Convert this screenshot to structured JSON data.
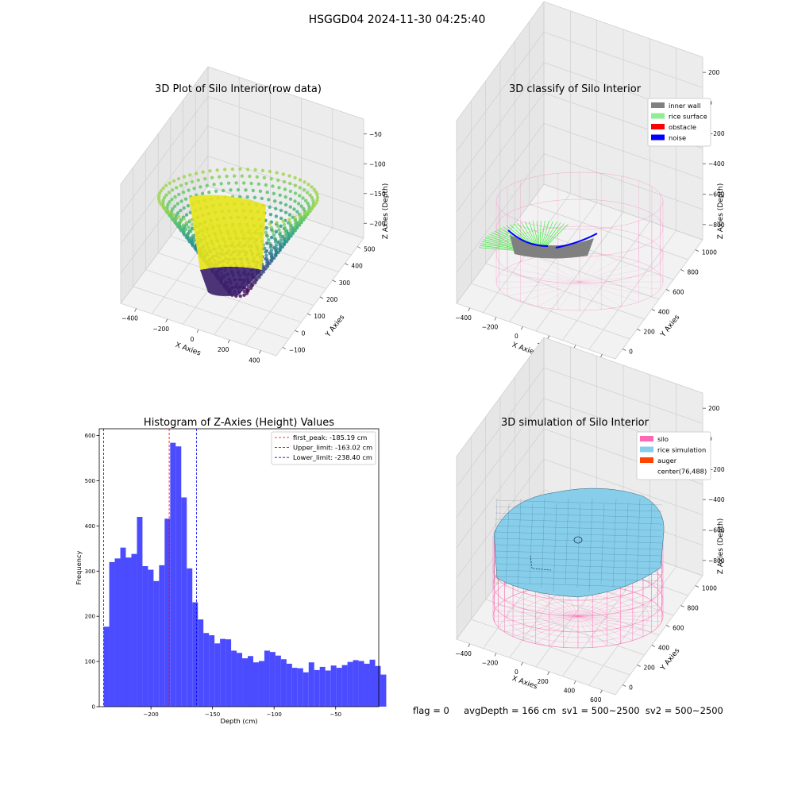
{
  "figure": {
    "suptitle": "HSGGD04 2024-11-30 04:25:40",
    "status_line": "flag = 0     avgDepth = 166 cm  sv1 = 500~2500  sv2 = 500~2500"
  },
  "chart_data": [
    {
      "type": "scatter",
      "title": "3D Plot of Silo Interior(row data)",
      "xlabel": "X Axies",
      "ylabel": "Y Axies",
      "zlabel": "Z Axies (Depth)",
      "x_ticks": [
        "−400",
        "−200",
        "0",
        "200",
        "400"
      ],
      "y_ticks": [
        "−100",
        "0",
        "100",
        "200",
        "300",
        "400",
        "500"
      ],
      "z_ticks": [
        "−50",
        "−100",
        "−150",
        "−200"
      ],
      "colormap": "viridis"
    },
    {
      "type": "scatter",
      "title": "3D classify of Silo Interior",
      "xlabel": "X Axies",
      "ylabel": "Y Axies",
      "zlabel": "Z Axies (Depth)",
      "x_ticks": [
        "−400",
        "−200",
        "0",
        "200",
        "400",
        "600"
      ],
      "y_ticks": [
        "0",
        "200",
        "400",
        "600",
        "800",
        "1000"
      ],
      "z_ticks": [
        "200",
        "0",
        "−200",
        "−400",
        "−600",
        "−800"
      ],
      "legend": {
        "placement": "upper right",
        "entries": [
          {
            "label": "inner wall",
            "color": "#808080"
          },
          {
            "label": "rice surface",
            "color": "#90ee90"
          },
          {
            "label": "obstacle",
            "color": "#ff0000"
          },
          {
            "label": "noise",
            "color": "#0000ff"
          }
        ]
      }
    },
    {
      "type": "bar",
      "title": "Histogram of Z-Axies (Height) Values",
      "xlabel": "Depth (cm)",
      "ylabel": "Frequency",
      "bar_color": "#4b4bff",
      "xlim": [
        -242,
        -15
      ],
      "ylim": [
        0,
        615
      ],
      "x_ticks": [
        -200,
        -150,
        -100,
        -50
      ],
      "x_tick_labels": [
        "−200",
        "−150",
        "−100",
        "−50"
      ],
      "y_ticks": [
        0,
        100,
        200,
        300,
        400,
        500,
        600
      ],
      "bin_start": -238.4,
      "bin_width": 4.5,
      "values": [
        177,
        320,
        328,
        352,
        330,
        338,
        420,
        311,
        303,
        278,
        313,
        416,
        584,
        576,
        463,
        306,
        231,
        193,
        163,
        158,
        140,
        150,
        149,
        124,
        119,
        107,
        112,
        98,
        101,
        124,
        121,
        113,
        105,
        95,
        86,
        85,
        76,
        98,
        81,
        88,
        80,
        91,
        86,
        92,
        99,
        103,
        101,
        95,
        104,
        90,
        71
      ],
      "vlines": [
        {
          "x": -185.19,
          "label": "first_peak: -185.19 cm",
          "color": "#ff0000"
        },
        {
          "x": -163.02,
          "label": "Upper_limit: -163.02 cm",
          "color": "#0000ff"
        },
        {
          "x": -238.4,
          "label": "Lower_limit: -238.40 cm",
          "color": "#0000ff"
        }
      ],
      "legend_placement": "upper right"
    },
    {
      "type": "scatter",
      "title": "3D simulation of Silo Interior",
      "xlabel": "X Axies",
      "ylabel": "Y Axies",
      "zlabel": "Z Axies (Depth)",
      "x_ticks": [
        "−400",
        "−200",
        "0",
        "200",
        "400",
        "600"
      ],
      "y_ticks": [
        "0",
        "200",
        "400",
        "600",
        "800",
        "1000"
      ],
      "z_ticks": [
        "200",
        "0",
        "−200",
        "−400",
        "−600",
        "−800"
      ],
      "legend": {
        "placement": "upper right",
        "entries": [
          {
            "label": "silo",
            "color": "#ff69b4"
          },
          {
            "label": "rice simulation",
            "color": "#87ceeb"
          },
          {
            "label": "auger",
            "color": "#ff4500"
          },
          {
            "label": "center(76,488)",
            "color": ""
          }
        ]
      }
    }
  ]
}
